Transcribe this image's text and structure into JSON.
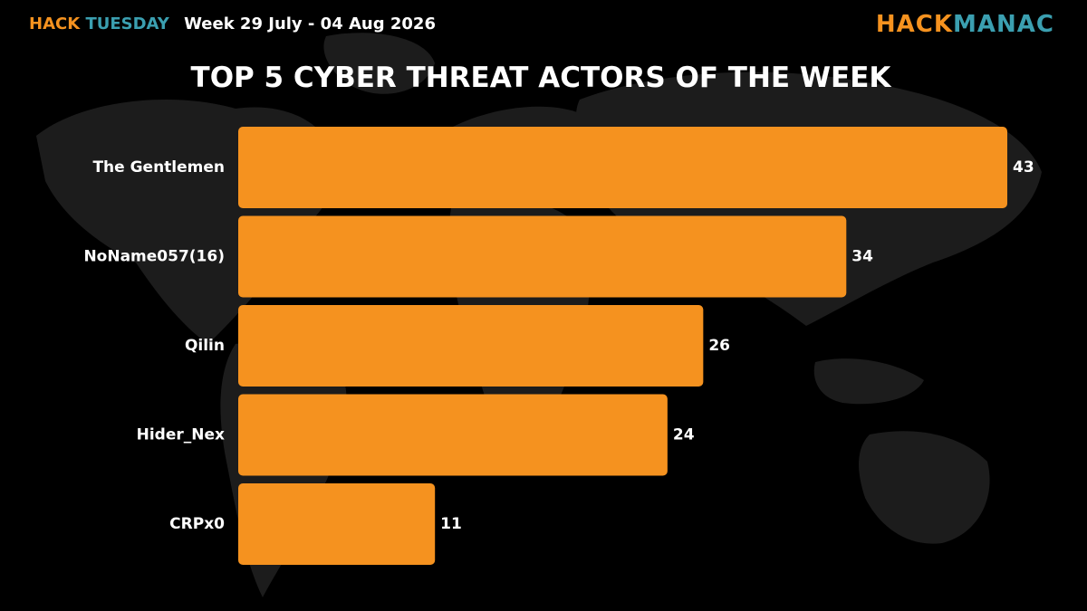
{
  "header": {
    "hack": "HACK",
    "tuesday": "TUESDAY",
    "week": "Week 29 July - 04 Aug 2026"
  },
  "logo": {
    "part1": "HACK",
    "part2": "MANAC"
  },
  "colors": {
    "bar": "#f5921f",
    "accent_orange": "#f5921f",
    "accent_teal": "#3b9fb0",
    "background": "#000000",
    "text": "#ffffff"
  },
  "chart_data": {
    "type": "bar",
    "orientation": "horizontal",
    "title": "TOP 5 CYBER THREAT ACTORS OF THE WEEK",
    "categories": [
      "The Gentlemen",
      "NoName057(16)",
      "Qilin",
      "Hider_Nex",
      "CRPx0"
    ],
    "values": [
      43,
      34,
      26,
      24,
      11
    ],
    "xlim": [
      0,
      43
    ],
    "grid": false,
    "legend": "none"
  }
}
